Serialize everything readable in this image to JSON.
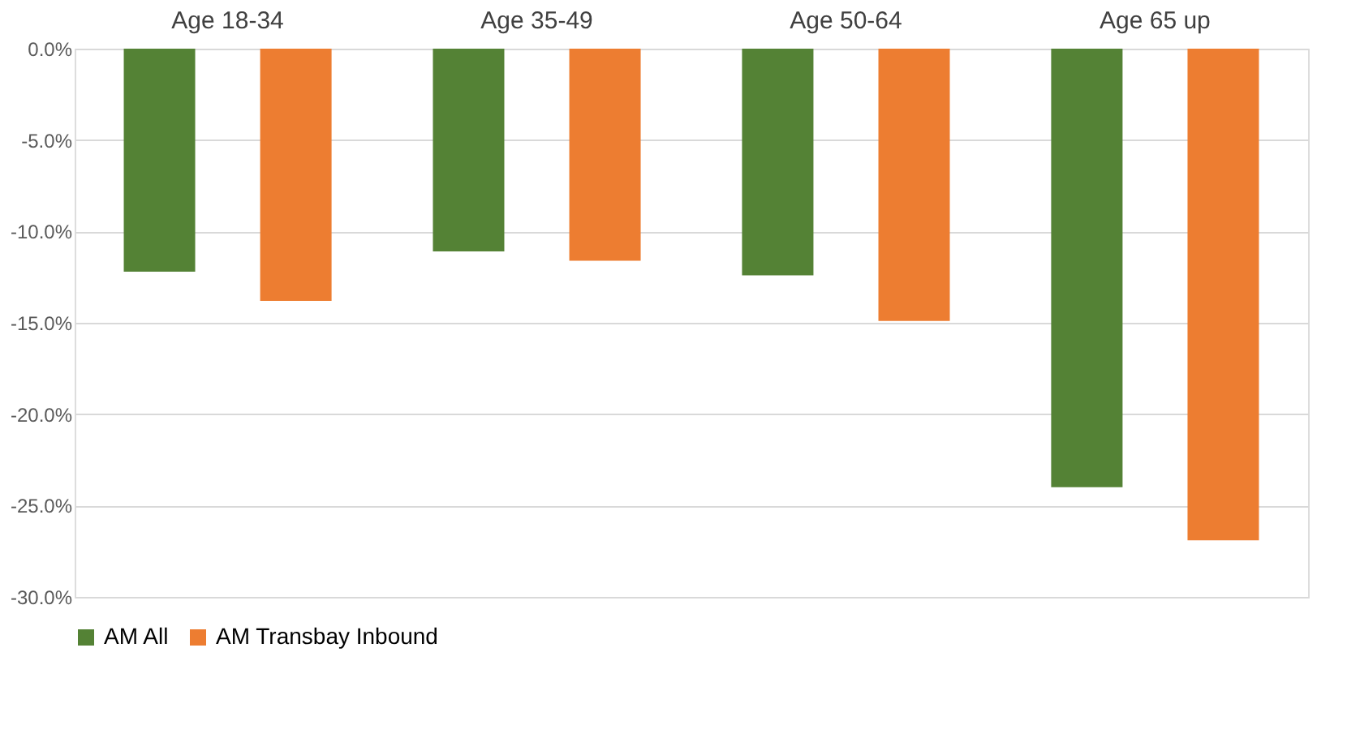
{
  "chart_data": {
    "type": "bar",
    "categories": [
      "Age 18-34",
      "Age 35-49",
      "Age 50-64",
      "Age 65 up"
    ],
    "series": [
      {
        "name": "AM All",
        "color": "#548235",
        "values": [
          -12.2,
          -11.1,
          -12.4,
          -24.0
        ]
      },
      {
        "name": "AM Transbay Inbound",
        "color": "#ed7d31",
        "values": [
          -13.8,
          -11.6,
          -14.9,
          -26.9
        ]
      }
    ],
    "ylim": [
      -30,
      0
    ],
    "yticks": [
      {
        "value": 0,
        "label": "0.0%"
      },
      {
        "value": -5,
        "label": "-5.0%"
      },
      {
        "value": -10,
        "label": "-10.0%"
      },
      {
        "value": -15,
        "label": "-15.0%"
      },
      {
        "value": -20,
        "label": "-20.0%"
      },
      {
        "value": -25,
        "label": "-25.0%"
      },
      {
        "value": -30,
        "label": "-30.0%"
      }
    ],
    "grid": "y",
    "legend": "bottom"
  }
}
